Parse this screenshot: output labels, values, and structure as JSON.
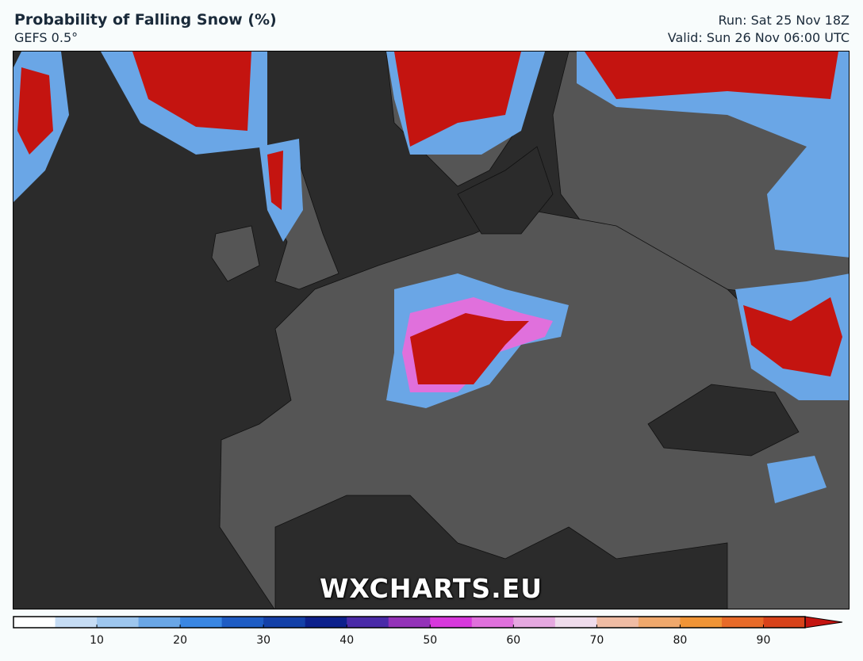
{
  "header": {
    "title": "Probability of Falling Snow (%)",
    "model": "GEFS 0.5°",
    "run": "Run: Sat 25 Nov 18Z",
    "valid": "Valid: Sun 26 Nov 06:00 UTC"
  },
  "map": {
    "watermark": "WXCHARTS.EU",
    "sea_color": "#2b2b2b",
    "land_color": "#555555"
  },
  "colorbar": {
    "min": 0,
    "max": 95,
    "step": 5,
    "extend": "max",
    "colors": [
      "#ffffff",
      "#c6dcf4",
      "#9ec6ee",
      "#6aa6e6",
      "#3a86e2",
      "#1f5cc4",
      "#1440a8",
      "#0d208c",
      "#4a2aa8",
      "#9432b8",
      "#d838dc",
      "#e070dc",
      "#e6a8e0",
      "#f0dcec",
      "#f0bca4",
      "#f0a86c",
      "#f09436",
      "#e86a28",
      "#d8421a"
    ],
    "extend_color": "#c41410",
    "ticks": [
      "10",
      "20",
      "30",
      "40",
      "50",
      "60",
      "70",
      "80",
      "90"
    ]
  }
}
